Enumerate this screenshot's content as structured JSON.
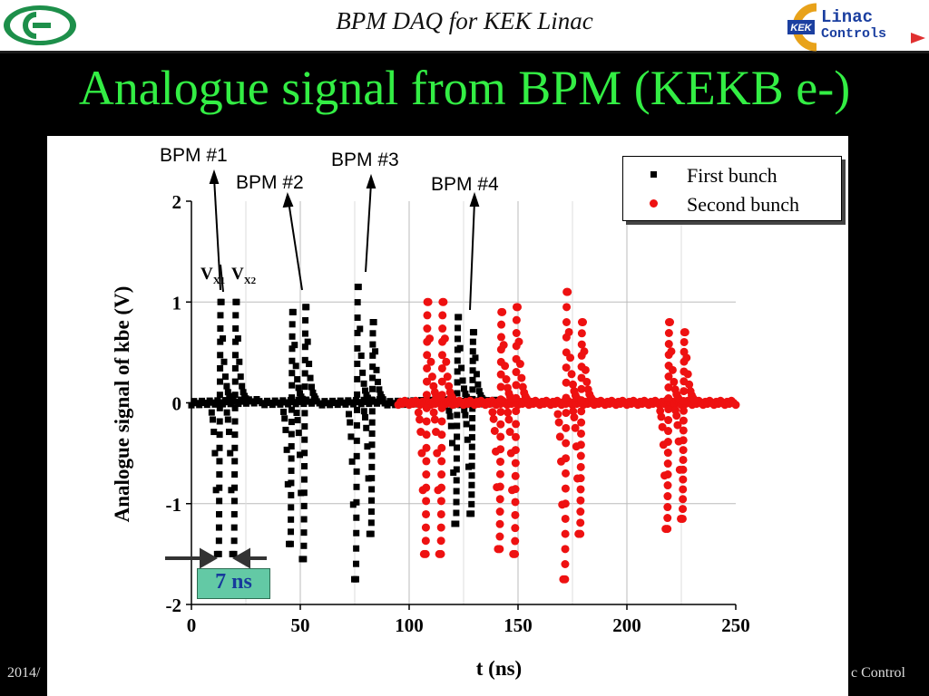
{
  "header": {
    "title": "BPM DAQ for KEK Linac",
    "logo_right_lines": [
      "KEK",
      "Linac",
      "Controls"
    ]
  },
  "slide": {
    "title": "Analogue signal from BPM (KEKB e-)"
  },
  "footer": {
    "left": "2014/",
    "right": "c Control"
  },
  "colors": {
    "title_green": "#33ee44",
    "series_first": "#000000",
    "series_second": "#ee1111",
    "ns_box": "#63c9a5"
  },
  "annotations": {
    "bpm1": "BPM #1",
    "bpm2": "BPM #2",
    "bpm3": "BPM #3",
    "bpm4": "BPM #4",
    "vx": "V",
    "vx1_sub": "X1",
    "vx2_sub": "X2",
    "width_label": "7 ns"
  },
  "chart_data": {
    "type": "scatter",
    "title": "",
    "xlabel": "t (ns)",
    "ylabel": "Analogue signal of kbe (V)",
    "xlim": [
      0,
      250
    ],
    "ylim": [
      -2,
      2
    ],
    "xticks": [
      0,
      50,
      100,
      150,
      200,
      250
    ],
    "yticks": [
      -2,
      -1,
      0,
      1,
      2
    ],
    "grid": true,
    "legend_position": "top-right",
    "series": [
      {
        "name": "First bunch",
        "pulses": [
          {
            "t": 13,
            "peak": 1.0,
            "trough": -1.5
          },
          {
            "t": 20,
            "peak": 1.0,
            "trough": -1.5
          },
          {
            "t": 46,
            "peak": 0.9,
            "trough": -1.4
          },
          {
            "t": 52,
            "peak": 0.95,
            "trough": -1.55
          },
          {
            "t": 76,
            "peak": 1.15,
            "trough": -1.75
          },
          {
            "t": 83,
            "peak": 0.8,
            "trough": -1.3
          },
          {
            "t": 122,
            "peak": 0.85,
            "trough": -1.2
          },
          {
            "t": 129,
            "peak": 0.7,
            "trough": -1.1
          }
        ],
        "baseline_range": [
          0,
          140
        ]
      },
      {
        "name": "Second bunch",
        "pulses": [
          {
            "t": 108,
            "peak": 1.0,
            "trough": -1.5
          },
          {
            "t": 115,
            "peak": 1.0,
            "trough": -1.5
          },
          {
            "t": 142,
            "peak": 0.9,
            "trough": -1.45
          },
          {
            "t": 149,
            "peak": 0.95,
            "trough": -1.5
          },
          {
            "t": 172,
            "peak": 1.1,
            "trough": -1.75
          },
          {
            "t": 179,
            "peak": 0.8,
            "trough": -1.3
          },
          {
            "t": 219,
            "peak": 0.8,
            "trough": -1.25
          },
          {
            "t": 226,
            "peak": 0.7,
            "trough": -1.15
          }
        ],
        "baseline_range": [
          95,
          250
        ]
      }
    ]
  }
}
